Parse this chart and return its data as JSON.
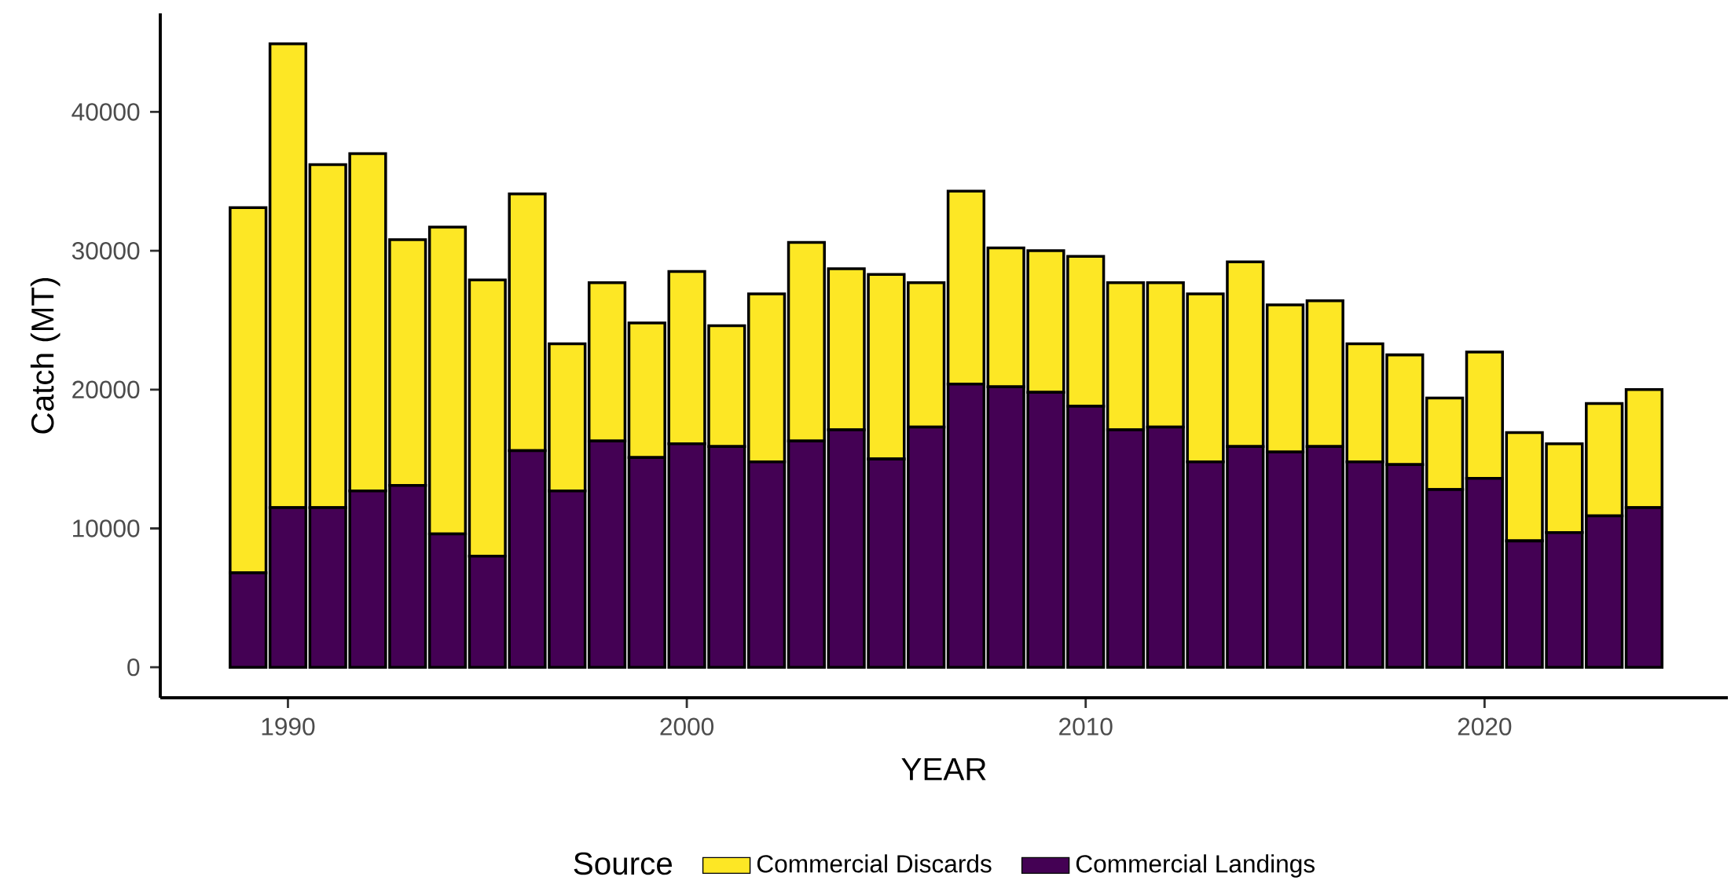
{
  "chart_data": {
    "type": "bar",
    "stacked": true,
    "xlabel": "YEAR",
    "ylabel": "Catch (MT)",
    "legend_title": "Source",
    "legend": "bottom",
    "x": [
      1989,
      1990,
      1991,
      1992,
      1993,
      1994,
      1995,
      1996,
      1997,
      1998,
      1999,
      2000,
      2001,
      2002,
      2003,
      2004,
      2005,
      2006,
      2007,
      2008,
      2009,
      2010,
      2011,
      2012,
      2013,
      2014,
      2015,
      2016,
      2017,
      2018,
      2019,
      2020,
      2021,
      2022,
      2023,
      2024
    ],
    "series": [
      {
        "name": "Commercial Landings",
        "color": "#440154",
        "values": [
          6800,
          11500,
          11500,
          12700,
          13100,
          9600,
          8000,
          15600,
          12700,
          16300,
          15100,
          16100,
          15900,
          14800,
          16300,
          17100,
          15000,
          17300,
          20400,
          20200,
          19800,
          18800,
          17100,
          17300,
          14800,
          15900,
          15500,
          15900,
          14800,
          14600,
          12800,
          13600,
          9100,
          9700,
          10900,
          11500
        ]
      },
      {
        "name": "Commercial Discards",
        "color": "#fde725",
        "values": [
          26300,
          33400,
          24700,
          24300,
          17700,
          22100,
          19900,
          18500,
          10600,
          11400,
          9700,
          12400,
          8700,
          12100,
          14300,
          11600,
          13300,
          10400,
          13900,
          10000,
          10200,
          10800,
          10600,
          10400,
          12100,
          13300,
          10600,
          10500,
          8500,
          7900,
          6600,
          9100,
          7800,
          6400,
          8100,
          8500
        ]
      }
    ],
    "xlim": [
      1986.8,
      2026.1
    ],
    "ylim": [
      -2200,
      47100
    ],
    "xticks": [
      1990,
      2000,
      2010,
      2020
    ],
    "yticks": [
      0,
      10000,
      20000,
      30000,
      40000
    ]
  }
}
